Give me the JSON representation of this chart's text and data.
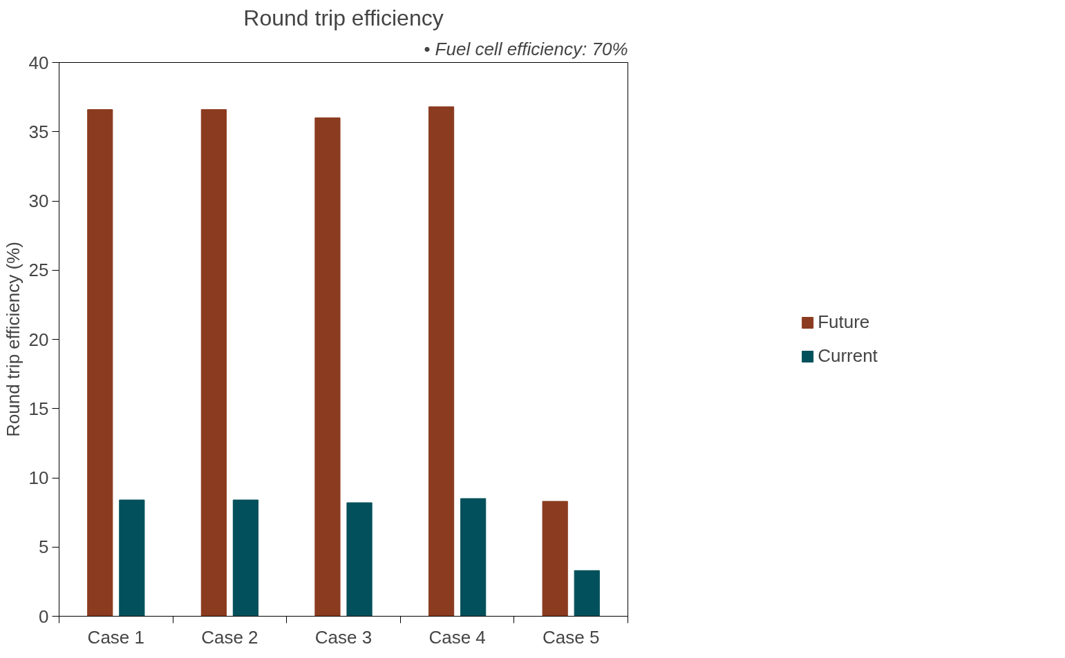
{
  "chart_data": {
    "type": "bar",
    "title": "Round trip efficiency",
    "ylabel": "Round trip efficiency (%)",
    "annotations": [
      "• Fuel cell efficiency: 70%"
    ],
    "categories": [
      "Case 1",
      "Case 2",
      "Case 3",
      "Case 4",
      "Case 5"
    ],
    "series": [
      {
        "name": "Future",
        "color": "#8b3b1f",
        "values": [
          36.6,
          36.6,
          36.0,
          36.8,
          8.3
        ]
      },
      {
        "name": "Current",
        "color": "#02505b",
        "values": [
          8.4,
          8.4,
          8.2,
          8.5,
          3.3
        ]
      }
    ],
    "ylim": [
      0,
      40
    ],
    "yticks": [
      0,
      5,
      10,
      15,
      20,
      25,
      30,
      35,
      40
    ],
    "grid": false,
    "legend": "right"
  }
}
